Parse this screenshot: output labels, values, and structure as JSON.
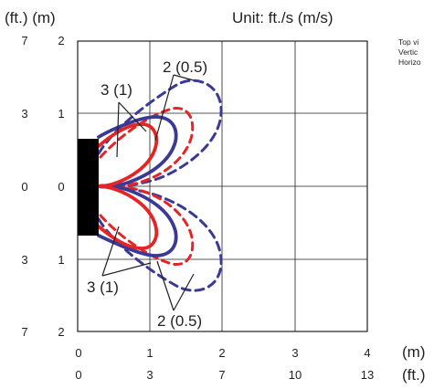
{
  "header": {
    "unit_left": "(ft.) (m)",
    "unit_right": "Unit: ft./s (m/s)"
  },
  "legend_text": {
    "line1": "Top vi",
    "line2": "Vertic",
    "line3": "Horizo"
  },
  "y_axis": {
    "ft_labels": [
      "7",
      "3",
      "0",
      "3",
      "7"
    ],
    "m_labels": [
      "2",
      "1",
      "0",
      "1",
      "2"
    ]
  },
  "x_axis": {
    "m_labels": [
      "0",
      "1",
      "2",
      "3",
      "4"
    ],
    "ft_labels": [
      "0",
      "3",
      "7",
      "10",
      "13"
    ],
    "m_unit": "(m)",
    "ft_unit": "(ft.)"
  },
  "callouts": {
    "top_inner": "3 (1)",
    "top_outer": "2 (0.5)",
    "bottom_inner": "3 (1)",
    "bottom_outer": "2 (0.5)"
  },
  "colors": {
    "grid": "#231f20",
    "unit_block": "#000000",
    "series_horizontal": "#3a3a96",
    "series_vertical": "#e42526",
    "text": "#231f20"
  }
}
